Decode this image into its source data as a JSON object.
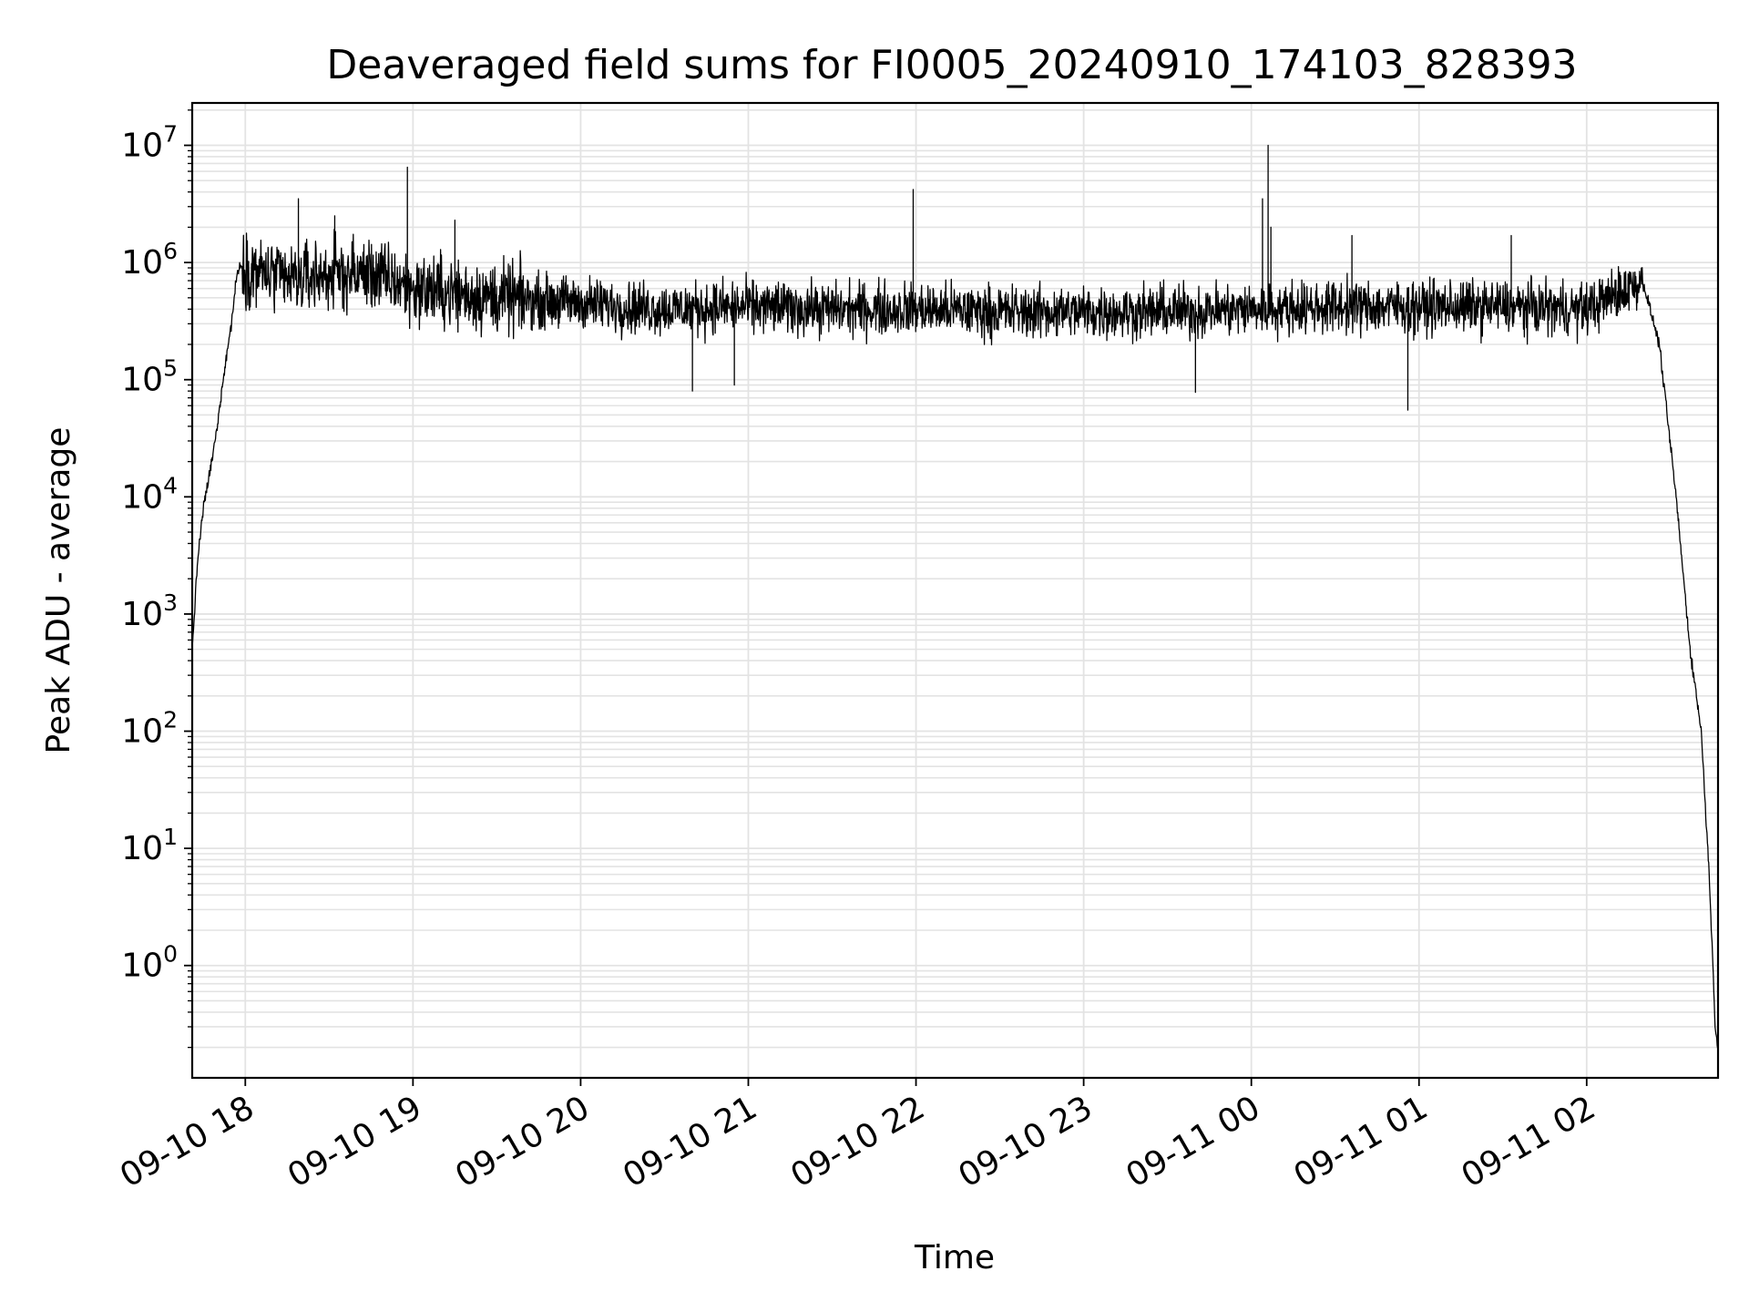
{
  "chart_data": {
    "type": "line",
    "title": "Deaveraged field sums for FI0005_20240910_174103_828393",
    "xlabel": "Time",
    "ylabel": "Peak ADU - average",
    "yscale": "log",
    "xlim": [
      "2024-09-10 17:41",
      "2024-09-11 02:47"
    ],
    "ylim": [
      0.11,
      23000000
    ],
    "grid": "on",
    "line_color": "#000000",
    "grid_color": "#e3e3e3",
    "x_ticks": [
      {
        "value": "2024-09-10 18:00",
        "label": "09-10 18"
      },
      {
        "value": "2024-09-10 19:00",
        "label": "09-10 19"
      },
      {
        "value": "2024-09-10 20:00",
        "label": "09-10 20"
      },
      {
        "value": "2024-09-10 21:00",
        "label": "09-10 21"
      },
      {
        "value": "2024-09-10 22:00",
        "label": "09-10 22"
      },
      {
        "value": "2024-09-10 23:00",
        "label": "09-10 23"
      },
      {
        "value": "2024-09-11 00:00",
        "label": "09-11 00"
      },
      {
        "value": "2024-09-11 01:00",
        "label": "09-11 01"
      },
      {
        "value": "2024-09-11 02:00",
        "label": "09-11 02"
      }
    ],
    "y_ticks": [
      {
        "value": 1,
        "base": "10",
        "exp": "0"
      },
      {
        "value": 10,
        "base": "10",
        "exp": "1"
      },
      {
        "value": 100,
        "base": "10",
        "exp": "2"
      },
      {
        "value": 1000,
        "base": "10",
        "exp": "3"
      },
      {
        "value": 10000,
        "base": "10",
        "exp": "4"
      },
      {
        "value": 100000,
        "base": "10",
        "exp": "5"
      },
      {
        "value": 1000000,
        "base": "10",
        "exp": "6"
      },
      {
        "value": 10000000,
        "base": "10",
        "exp": "7"
      }
    ],
    "series": [
      {
        "x": [
          "2024-09-10 17:41",
          "2024-09-10 17:43",
          "2024-09-10 17:45",
          "2024-09-10 17:48",
          "2024-09-10 17:50",
          "2024-09-10 17:52",
          "2024-09-10 17:55",
          "2024-09-10 17:57",
          "2024-09-10 17:59",
          "2024-09-10 18:00",
          "2024-09-10 18:15",
          "2024-09-10 18:30",
          "2024-09-10 18:45",
          "2024-09-10 19:00",
          "2024-09-10 19:30",
          "2024-09-10 20:00",
          "2024-09-10 20:30",
          "2024-09-10 21:00",
          "2024-09-10 21:30",
          "2024-09-10 22:00",
          "2024-09-10 22:30",
          "2024-09-10 23:00",
          "2024-09-10 23:30",
          "2024-09-11 00:00",
          "2024-09-11 00:30",
          "2024-09-11 01:00",
          "2024-09-11 01:30",
          "2024-09-11 02:00",
          "2024-09-11 02:20",
          "2024-09-11 02:26",
          "2024-09-11 02:32",
          "2024-09-11 02:37",
          "2024-09-11 02:41",
          "2024-09-11 02:44",
          "2024-09-11 02:46",
          "2024-09-11 02:47"
        ],
        "y": [
          500,
          3000,
          8000,
          20000,
          40000,
          100000,
          300000,
          800000,
          1000000,
          900000,
          700000,
          800000,
          800000,
          600000,
          500000,
          450000,
          400000,
          420000,
          400000,
          400000,
          380000,
          380000,
          380000,
          400000,
          420000,
          420000,
          420000,
          400000,
          700000,
          200000,
          10000,
          500,
          100,
          5,
          0.3,
          0.2
        ]
      }
    ],
    "spikes": [
      {
        "x": "2024-09-10 18:19",
        "y": 3500000
      },
      {
        "x": "2024-09-10 18:32",
        "y": 2500000
      },
      {
        "x": "2024-09-10 18:58",
        "y": 6500000
      },
      {
        "x": "2024-09-10 19:15",
        "y": 2300000
      },
      {
        "x": "2024-09-10 21:59",
        "y": 4200000
      },
      {
        "x": "2024-09-11 00:04",
        "y": 3500000
      },
      {
        "x": "2024-09-11 00:06",
        "y": 10000000
      },
      {
        "x": "2024-09-11 00:07",
        "y": 2000000
      },
      {
        "x": "2024-09-11 00:36",
        "y": 1700000
      },
      {
        "x": "2024-09-11 01:33",
        "y": 1700000
      }
    ],
    "dips": [
      {
        "x": "2024-09-10 20:40",
        "y": 80000
      },
      {
        "x": "2024-09-10 20:55",
        "y": 90000
      },
      {
        "x": "2024-09-10 23:40",
        "y": 78000
      },
      {
        "x": "2024-09-11 00:56",
        "y": 55000
      }
    ]
  }
}
